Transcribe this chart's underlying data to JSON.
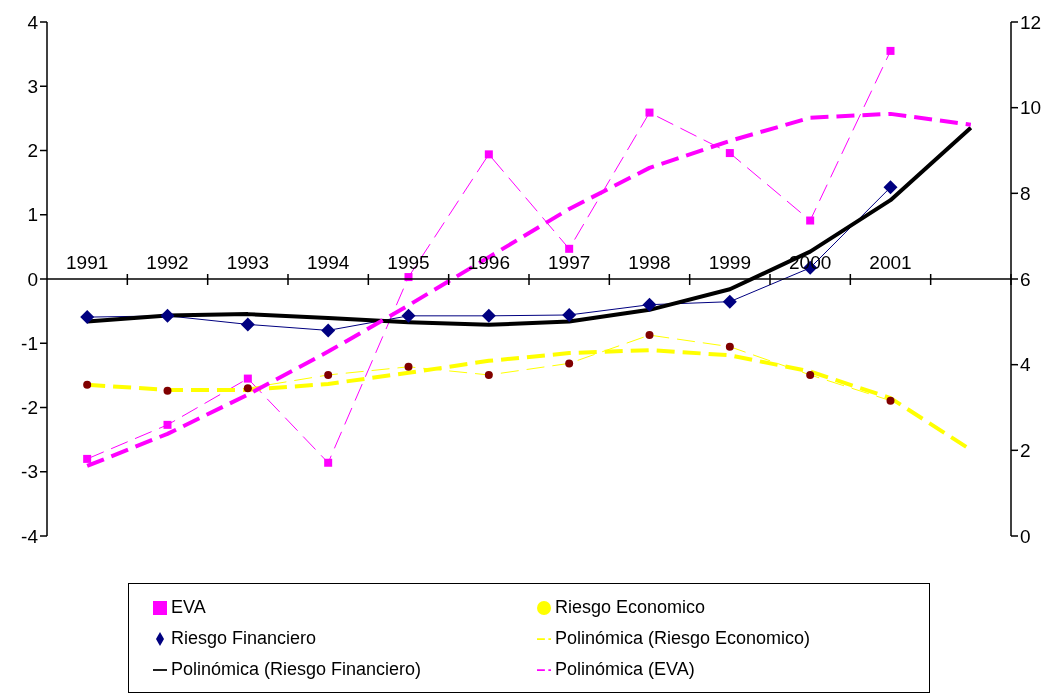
{
  "chart_data": {
    "type": "line",
    "categories": [
      "1991",
      "1992",
      "1993",
      "1994",
      "1995",
      "1996",
      "1997",
      "1998",
      "1999",
      "2000",
      "2001",
      null
    ],
    "ylim": [
      -4,
      4
    ],
    "yticks": [
      -4,
      -3,
      -2,
      -1,
      0,
      1,
      2,
      3,
      4
    ],
    "y2lim": [
      0,
      12
    ],
    "y2ticks": [
      0,
      2,
      4,
      6,
      8,
      10,
      12
    ],
    "grid": false,
    "legend": "bottom",
    "series": [
      {
        "name": "EVA",
        "color": "#ff00ff",
        "marker": "square",
        "line_style": "dashed",
        "values": [
          -2.8,
          -2.27,
          -1.55,
          -2.86,
          0.03,
          1.94,
          0.47,
          2.59,
          1.96,
          0.91,
          3.55,
          null
        ]
      },
      {
        "name": "Riesgo Economico",
        "color": "#ffff00",
        "colors": [
          "#800000",
          "#800000",
          "#800000",
          "#800000",
          "#800000",
          "#800000",
          "#800000",
          "#800000",
          "#800000",
          "#800000",
          "#800000",
          "#800000"
        ],
        "marker": "circle",
        "line_style": "dashed",
        "axis": "y2",
        "values": [
          3.53,
          3.39,
          3.45,
          3.76,
          3.95,
          3.76,
          4.03,
          4.69,
          4.42,
          3.76,
          3.16,
          null
        ]
      },
      {
        "name": "Riesgo Financiero",
        "color": "#000080",
        "marker": "diamond",
        "line_style": "solid",
        "axis": "y2",
        "values": [
          5.11,
          5.14,
          4.94,
          4.8,
          5.14,
          5.14,
          5.16,
          5.4,
          5.47,
          6.26,
          8.14,
          null
        ]
      },
      {
        "name": "Polinómica (Riesgo Economico)",
        "color": "#ffff00",
        "marker": "none",
        "line_style": "dashed",
        "axis": "y2",
        "values": [
          3.53,
          3.41,
          3.41,
          3.55,
          3.81,
          4.09,
          4.27,
          4.34,
          4.22,
          3.84,
          3.22,
          2.01
        ]
      },
      {
        "name": "Polinómica (Riesgo Financiero)",
        "color": "#000000",
        "marker": "none",
        "line_style": "solid",
        "axis": "y2",
        "values": [
          5.01,
          5.15,
          5.18,
          5.09,
          4.99,
          4.93,
          5.01,
          5.28,
          5.76,
          6.64,
          7.84,
          9.53
        ]
      },
      {
        "name": "Polinómica (EVA)",
        "color": "#ff00ff",
        "marker": "none",
        "line_style": "dashed",
        "values": [
          -2.91,
          -2.41,
          -1.8,
          -1.13,
          -0.41,
          0.34,
          1.09,
          1.73,
          2.15,
          2.51,
          2.57,
          2.4
        ]
      }
    ]
  }
}
